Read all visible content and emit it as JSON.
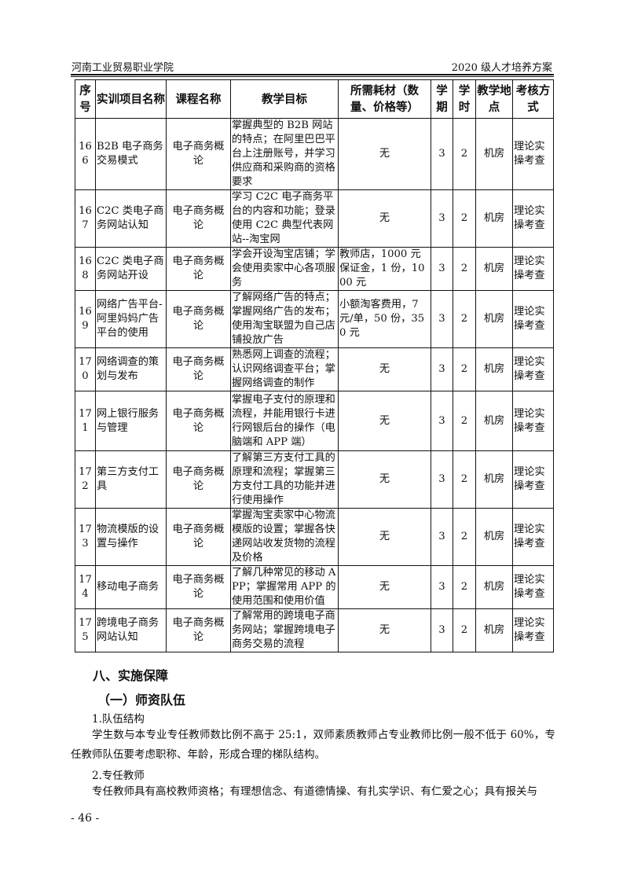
{
  "header": {
    "left": "河南工业贸易职业学院",
    "right": "2020 级人才培养方案"
  },
  "table": {
    "columns": [
      "序号",
      "实训项目名称",
      "课程名称",
      "教学目标",
      "所需耗材（数量、价格等）",
      "学期",
      "学时",
      "教学地点",
      "考核方式"
    ],
    "rows": [
      [
        "166",
        "B2B 电子商务交易模式",
        "电子商务概论",
        "掌握典型的 B2B 网站的特点；在阿里巴巴平台上注册账号，并学习供应商和采购商的资格要求",
        "无",
        "3",
        "2",
        "机房",
        "理论实操考查"
      ],
      [
        "167",
        "C2C 类电子商务网站认知",
        "电子商务概论",
        "学习 C2C 电子商务平台的内容和功能；登录使用 C2C 典型代表网站--淘宝网",
        "无",
        "3",
        "2",
        "机房",
        "理论实操考查"
      ],
      [
        "168",
        "C2C 类电子商务网站开设",
        "电子商务概论",
        "学会开设淘宝店铺；学会使用卖家中心各项服务",
        "教师店，1000 元保证金，1 份，1000 元",
        "3",
        "2",
        "机房",
        "理论实操考查"
      ],
      [
        "169",
        "网络广告平台-阿里妈妈广告平台的使用",
        "电子商务概论",
        "了解网络广告的特点；掌握网络广告的发布；使用淘宝联盟为自己店铺投放广告",
        "小额淘客费用，7 元/单，50 份，350 元",
        "3",
        "2",
        "机房",
        "理论实操考查"
      ],
      [
        "170",
        "网络调查的策划与发布",
        "电子商务概论",
        "熟悉网上调查的流程；认识网络调查平台；掌握网络调查的制作",
        "无",
        "3",
        "2",
        "机房",
        "理论实操考查"
      ],
      [
        "171",
        "网上银行服务与管理",
        "电子商务概论",
        "掌握电子支付的原理和流程，并能用银行卡进行网银后台的操作（电脑端和 APP 端）",
        "无",
        "3",
        "2",
        "机房",
        "理论实操考查"
      ],
      [
        "172",
        "第三方支付工具",
        "电子商务概论",
        "了解第三方支付工具的原理和流程；掌握第三方支付工具的功能并进行使用操作",
        "无",
        "3",
        "2",
        "机房",
        "理论实操考查"
      ],
      [
        "173",
        "物流模版的设置与操作",
        "电子商务概论",
        "掌握淘宝卖家中心物流模版的设置；掌握各快递网站收发货物的流程及价格",
        "无",
        "3",
        "2",
        "机房",
        "理论实操考查"
      ],
      [
        "174",
        "移动电子商务",
        "电子商务概论",
        "了解几种常见的移动 APP；掌握常用 APP 的使用范围和使用价值",
        "无",
        "3",
        "2",
        "机房",
        "理论实操考查"
      ],
      [
        "175",
        "跨境电子商务网站认知",
        "电子商务概论",
        "了解常用的跨境电子商务网站；掌握跨境电子商务交易的流程",
        "无",
        "3",
        "2",
        "机房",
        "理论实操考查"
      ]
    ]
  },
  "section": {
    "title": "八、实施保障",
    "subtitle": "（一）师资队伍",
    "item1_title": "1.队伍结构",
    "item1_text": "学生数与本专业专任教师数比例不高于 25:1，双师素质教师占专业教师比例一般不低于 60%，专任教师队伍要考虑职称、年龄，形成合理的梯队结构。",
    "item2_title": "2.专任教师",
    "item2_text": "专任教师具有高校教师资格；有理想信念、有道德情操、有扎实学识、有仁爱之心；具有报关与"
  },
  "footer": {
    "page_number": "- 46 -"
  }
}
